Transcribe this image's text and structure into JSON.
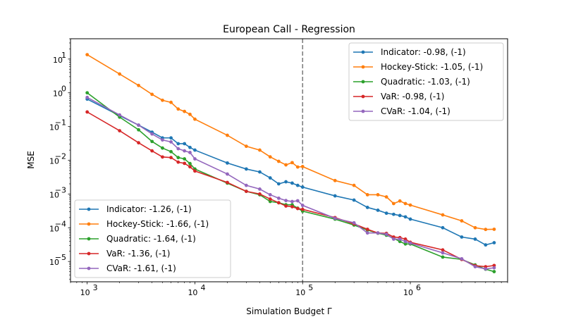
{
  "chart_data": {
    "type": "line",
    "title": "European Call - Regression",
    "xlabel": "Simulation Budget Γ",
    "ylabel": "MSE",
    "xscale": "log",
    "yscale": "log",
    "xlim": [
      700,
      8000000
    ],
    "ylim": [
      2.5e-06,
      40
    ],
    "x_ticks": [
      {
        "value": 1000,
        "label": "10",
        "exp": "3"
      },
      {
        "value": 10000,
        "label": "10",
        "exp": "4"
      },
      {
        "value": 100000,
        "label": "10",
        "exp": "5"
      },
      {
        "value": 1000000,
        "label": "10",
        "exp": "6"
      }
    ],
    "y_ticks": [
      {
        "value": 1e-05,
        "label": "10",
        "exp": "−5"
      },
      {
        "value": 0.0001,
        "label": "10",
        "exp": "−4"
      },
      {
        "value": 0.001,
        "label": "10",
        "exp": "−3"
      },
      {
        "value": 0.01,
        "label": "10",
        "exp": "−2"
      },
      {
        "value": 0.1,
        "label": "10",
        "exp": "−1"
      },
      {
        "value": 1,
        "label": "10",
        "exp": "0"
      },
      {
        "value": 10,
        "label": "10",
        "exp": "1"
      }
    ],
    "vline": {
      "x": 100000,
      "color": "#808080",
      "style": "dashed"
    },
    "series": [
      {
        "name": "Indicator",
        "color": "#1f77b4",
        "x": [
          1000,
          2000,
          3000,
          4000,
          5000,
          6000,
          7000,
          8000,
          9000,
          10000,
          20000,
          30000,
          40000,
          50000,
          60000,
          70000,
          80000,
          90000,
          100000,
          200000,
          300000,
          400000,
          500000,
          600000,
          700000,
          800000,
          900000,
          1000000,
          2000000,
          3000000,
          4000000,
          5000000,
          6000000
        ],
        "y": [
          0.65,
          0.21,
          0.11,
          0.068,
          0.046,
          0.046,
          0.031,
          0.031,
          0.024,
          0.02,
          0.0083,
          0.0055,
          0.0045,
          0.003,
          0.002,
          0.0023,
          0.0021,
          0.0018,
          0.0016,
          0.00088,
          0.00066,
          0.0004,
          0.00033,
          0.00027,
          0.00025,
          0.00023,
          0.00021,
          0.00018,
          0.0001,
          5.3e-05,
          4.6e-05,
          3.1e-05,
          3.6e-05
        ]
      },
      {
        "name": "Hockey-Stick",
        "color": "#ff7f0e",
        "x": [
          1000,
          2000,
          3000,
          4000,
          5000,
          6000,
          7000,
          8000,
          9000,
          10000,
          20000,
          30000,
          40000,
          50000,
          60000,
          70000,
          80000,
          90000,
          100000,
          200000,
          300000,
          400000,
          500000,
          600000,
          700000,
          800000,
          900000,
          1000000,
          2000000,
          3000000,
          4000000,
          5000000,
          6000000
        ],
        "y": [
          13.5,
          3.6,
          1.65,
          0.9,
          0.6,
          0.52,
          0.33,
          0.28,
          0.23,
          0.165,
          0.055,
          0.026,
          0.02,
          0.0126,
          0.0093,
          0.0073,
          0.0085,
          0.0063,
          0.0065,
          0.0025,
          0.0018,
          0.00095,
          0.00095,
          0.00082,
          0.00052,
          0.00062,
          0.00052,
          0.00047,
          0.00024,
          0.00016,
          0.0001,
          8.9e-05,
          9e-05
        ]
      },
      {
        "name": "Quadratic",
        "color": "#2ca02c",
        "x": [
          1000,
          2000,
          3000,
          4000,
          5000,
          6000,
          7000,
          8000,
          9000,
          10000,
          20000,
          30000,
          40000,
          50000,
          60000,
          70000,
          80000,
          90000,
          100000,
          200000,
          300000,
          400000,
          500000,
          600000,
          700000,
          800000,
          900000,
          1000000,
          2000000,
          3000000,
          4000000,
          5000000,
          6000000
        ],
        "y": [
          1.0,
          0.19,
          0.08,
          0.036,
          0.023,
          0.018,
          0.012,
          0.011,
          0.008,
          0.0055,
          0.0021,
          0.0012,
          0.00095,
          0.0006,
          0.00055,
          0.00048,
          0.00048,
          0.00038,
          0.00031,
          0.00018,
          0.00012,
          8.5e-05,
          6.9e-05,
          6e-05,
          4.9e-05,
          3.9e-05,
          3.3e-05,
          3.3e-05,
          1.35e-05,
          1.15e-05,
          7.9e-06,
          5.9e-06,
          5e-06
        ]
      },
      {
        "name": "VaR",
        "color": "#d62728",
        "x": [
          1000,
          2000,
          3000,
          4000,
          5000,
          6000,
          7000,
          8000,
          9000,
          10000,
          20000,
          30000,
          40000,
          50000,
          60000,
          70000,
          80000,
          90000,
          100000,
          200000,
          300000,
          400000,
          500000,
          600000,
          700000,
          800000,
          900000,
          1000000,
          2000000,
          3000000,
          4000000,
          5000000,
          6000000
        ],
        "y": [
          0.27,
          0.075,
          0.033,
          0.019,
          0.0125,
          0.012,
          0.0088,
          0.0081,
          0.0064,
          0.0048,
          0.0022,
          0.0012,
          0.001,
          0.00071,
          0.00055,
          0.00044,
          0.00042,
          0.00037,
          0.00035,
          0.0002,
          0.00013,
          9e-05,
          7e-05,
          6.8e-05,
          5.3e-05,
          5.1e-05,
          4.6e-05,
          3.7e-05,
          2.2e-05,
          1.15e-05,
          7.5e-06,
          7e-06,
          7.6e-06
        ]
      },
      {
        "name": "CVaR",
        "color": "#9467bd",
        "x": [
          1000,
          2000,
          3000,
          4000,
          5000,
          6000,
          7000,
          8000,
          9000,
          10000,
          20000,
          30000,
          40000,
          50000,
          60000,
          70000,
          80000,
          90000,
          100000,
          200000,
          300000,
          400000,
          500000,
          600000,
          700000,
          800000,
          900000,
          1000000,
          2000000,
          3000000,
          4000000,
          5000000,
          6000000
        ],
        "y": [
          0.73,
          0.22,
          0.11,
          0.06,
          0.04,
          0.035,
          0.022,
          0.019,
          0.017,
          0.011,
          0.0039,
          0.0018,
          0.0014,
          0.00095,
          0.00075,
          0.00064,
          0.0006,
          0.00063,
          0.00046,
          0.00019,
          0.00014,
          7e-05,
          7e-05,
          6.4e-05,
          4.6e-05,
          4.6e-05,
          3.9e-05,
          3.5e-05,
          1.8e-05,
          1.2e-05,
          7e-06,
          6e-06,
          6.5e-06
        ]
      }
    ],
    "legends": [
      {
        "placement": "upper-right",
        "entries": [
          "Indicator: -0.98, (-1)",
          "Hockey-Stick: -1.05, (-1)",
          "Quadratic: -1.03, (-1)",
          "VaR: -0.98, (-1)",
          "CVaR: -1.04, (-1)"
        ]
      },
      {
        "placement": "lower-left",
        "entries": [
          "Indicator: -1.26, (-1)",
          "Hockey-Stick: -1.66, (-1)",
          "Quadratic: -1.64, (-1)",
          "VaR: -1.36, (-1)",
          "CVaR: -1.61, (-1)"
        ]
      }
    ]
  }
}
